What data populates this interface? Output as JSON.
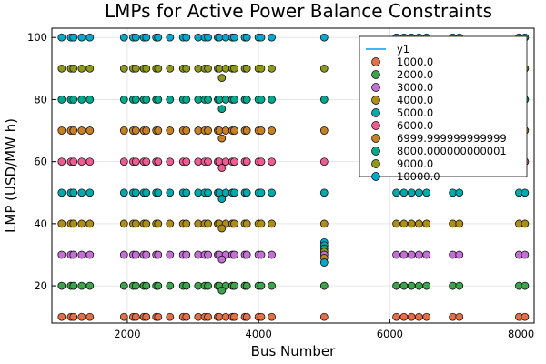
{
  "chart_data": {
    "type": "scatter",
    "title": "LMPs for Active Power Balance Constraints",
    "xlabel": "Bus Number",
    "ylabel": "LMP (USD/MW h)",
    "xlim": [
      850,
      8200
    ],
    "ylim": [
      8,
      103
    ],
    "xticks": [
      2000,
      4000,
      6000,
      8000
    ],
    "yticks": [
      20,
      40,
      60,
      80,
      100
    ],
    "grid": true,
    "legend_position": "top-right",
    "legend_line_entry": {
      "name": "y1",
      "color": "#009af9"
    },
    "bus_clusters": [
      [
        1000,
        1140
      ],
      [
        1180,
        1430
      ],
      [
        1950,
        2090
      ],
      [
        2130,
        2250
      ],
      [
        2290,
        2440
      ],
      [
        2470,
        2650
      ],
      [
        2850,
        2900
      ],
      [
        3080,
        3180
      ],
      [
        3230,
        3380
      ],
      [
        3400,
        3600
      ],
      [
        3630,
        3790
      ],
      [
        3820,
        4000
      ],
      [
        4040,
        4200
      ],
      [
        6100,
        6560
      ],
      [
        6960,
        7060
      ],
      [
        7970,
        8060
      ]
    ],
    "series": [
      {
        "name": "1000.0",
        "color": "#e26f46",
        "values": [
          10
        ]
      },
      {
        "name": "2000.0",
        "color": "#3da44d",
        "values": [
          20
        ]
      },
      {
        "name": "3000.0",
        "color": "#c271d2",
        "values": [
          30
        ]
      },
      {
        "name": "4000.0",
        "color": "#ac8d18",
        "values": [
          40
        ]
      },
      {
        "name": "5000.0",
        "color": "#00a9ad",
        "values": [
          50
        ]
      },
      {
        "name": "6000.0",
        "color": "#ed5d92",
        "values": [
          60
        ]
      },
      {
        "name": "6999.999999999999",
        "color": "#c68125",
        "values": [
          70
        ]
      },
      {
        "name": "8000.000000000001",
        "color": "#00a98d",
        "values": [
          80
        ]
      },
      {
        "name": "9000.0",
        "color": "#8e971e",
        "values": [
          90
        ]
      },
      {
        "name": "10000.0",
        "color": "#00a8cb",
        "values": [
          100
        ]
      }
    ],
    "outliers": [
      {
        "x": 3440,
        "y": 87,
        "series": "9000.0"
      },
      {
        "x": 3440,
        "y": 77,
        "series": "8000.000000000001"
      },
      {
        "x": 3440,
        "y": 67.5,
        "series": "6999.999999999999"
      },
      {
        "x": 3440,
        "y": 58,
        "series": "6000.0"
      },
      {
        "x": 3440,
        "y": 48,
        "series": "5000.0"
      },
      {
        "x": 3440,
        "y": 38.5,
        "series": "4000.0"
      },
      {
        "x": 3440,
        "y": 28.5,
        "series": "3000.0"
      },
      {
        "x": 3440,
        "y": 18.5,
        "series": "2000.0"
      },
      {
        "x": 5000,
        "y": 100,
        "series": "10000.0"
      },
      {
        "x": 5000,
        "y": 90,
        "series": "9000.0"
      },
      {
        "x": 5000,
        "y": 80,
        "series": "8000.000000000001"
      },
      {
        "x": 5000,
        "y": 70,
        "series": "6999.999999999999"
      },
      {
        "x": 5000,
        "y": 60,
        "series": "6000.0"
      },
      {
        "x": 5000,
        "y": 50,
        "series": "5000.0"
      },
      {
        "x": 5000,
        "y": 40,
        "series": "4000.0"
      },
      {
        "x": 5000,
        "y": 34,
        "series": "10000.0"
      },
      {
        "x": 5000,
        "y": 33,
        "series": "5000.0"
      },
      {
        "x": 5000,
        "y": 32,
        "series": "8000.000000000001"
      },
      {
        "x": 5000,
        "y": 31,
        "series": "9000.0"
      },
      {
        "x": 5000,
        "y": 30,
        "series": "3000.0"
      },
      {
        "x": 5000,
        "y": 29,
        "series": "6999.999999999999"
      },
      {
        "x": 5000,
        "y": 27.5,
        "series": "10000.0"
      },
      {
        "x": 5000,
        "y": 20,
        "series": "2000.0"
      },
      {
        "x": 5000,
        "y": 10,
        "series": "1000.0"
      }
    ]
  }
}
